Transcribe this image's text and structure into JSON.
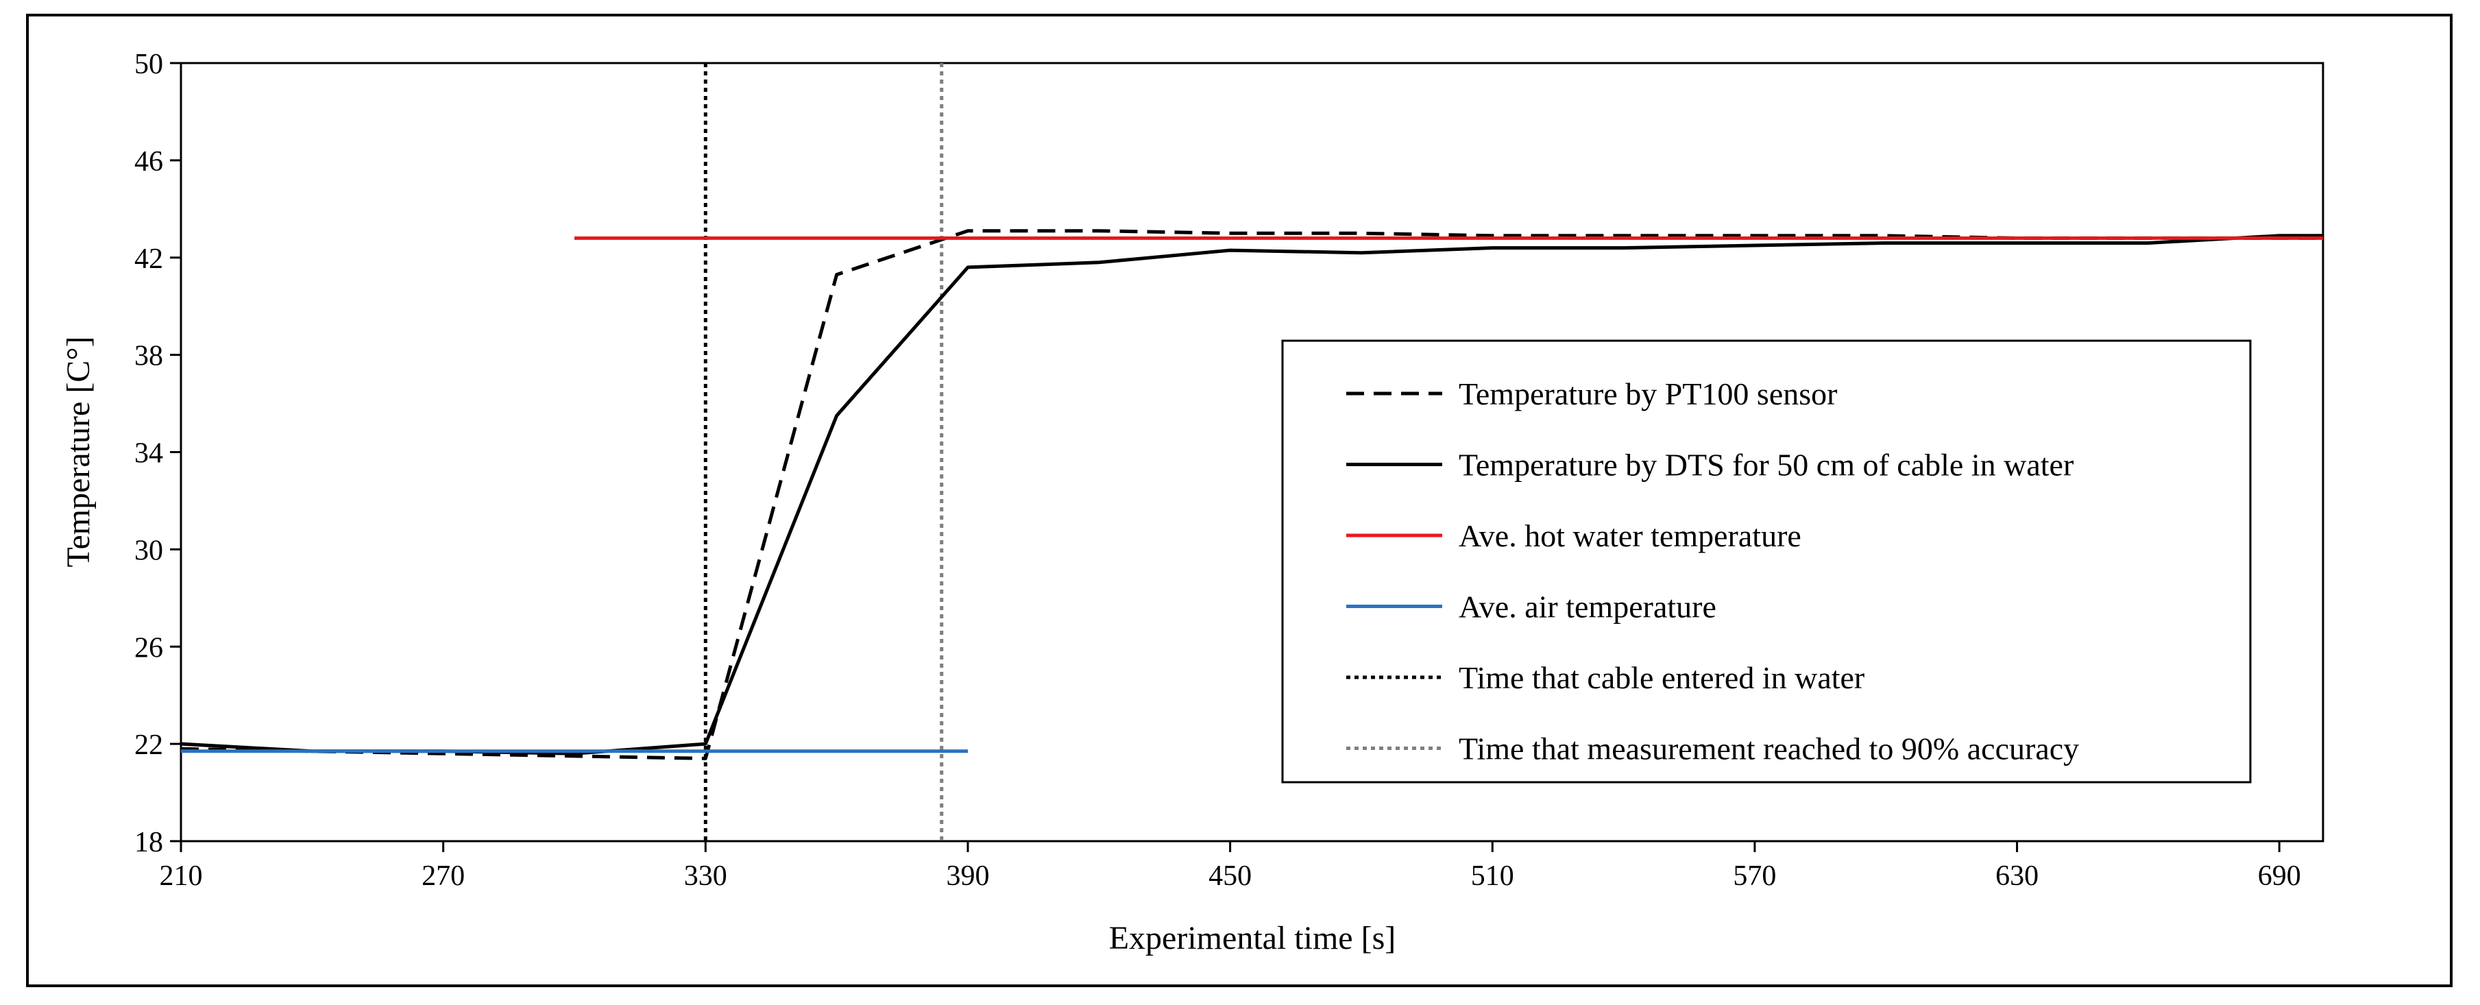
{
  "chart_data": {
    "type": "line",
    "title": "",
    "xlabel": "Experimental time [s]",
    "ylabel": "Temperature [C°]",
    "xlim": [
      210,
      700
    ],
    "ylim": [
      18,
      50
    ],
    "x_ticks": [
      210,
      270,
      330,
      390,
      450,
      510,
      570,
      630,
      690
    ],
    "y_ticks": [
      18,
      22,
      26,
      30,
      34,
      38,
      42,
      46,
      50
    ],
    "grid": false,
    "legend_position": "center-right",
    "series": [
      {
        "name": "Temperature by PT100 sensor",
        "style": "dashed",
        "color": "#000000",
        "points": [
          [
            210,
            21.8
          ],
          [
            240,
            21.7
          ],
          [
            270,
            21.6
          ],
          [
            300,
            21.5
          ],
          [
            330,
            21.4
          ],
          [
            360,
            41.3
          ],
          [
            390,
            43.1
          ],
          [
            420,
            43.1
          ],
          [
            450,
            43.0
          ],
          [
            480,
            43.0
          ],
          [
            510,
            42.9
          ],
          [
            540,
            42.9
          ],
          [
            570,
            42.9
          ],
          [
            600,
            42.9
          ],
          [
            630,
            42.8
          ],
          [
            660,
            42.8
          ],
          [
            690,
            42.8
          ],
          [
            700,
            42.8
          ]
        ]
      },
      {
        "name": "Temperature by DTS for 50 cm of cable in water",
        "style": "solid",
        "color": "#000000",
        "points": [
          [
            210,
            22.0
          ],
          [
            240,
            21.7
          ],
          [
            270,
            21.7
          ],
          [
            300,
            21.6
          ],
          [
            330,
            22.0
          ],
          [
            360,
            35.5
          ],
          [
            390,
            41.6
          ],
          [
            420,
            41.8
          ],
          [
            450,
            42.3
          ],
          [
            480,
            42.2
          ],
          [
            510,
            42.4
          ],
          [
            540,
            42.4
          ],
          [
            570,
            42.5
          ],
          [
            600,
            42.6
          ],
          [
            630,
            42.6
          ],
          [
            660,
            42.6
          ],
          [
            690,
            42.9
          ],
          [
            700,
            42.9
          ]
        ]
      },
      {
        "name": "Ave. hot water temperature",
        "style": "solid",
        "color": "#e8181e",
        "points": [
          [
            300,
            42.8
          ],
          [
            700,
            42.8
          ]
        ]
      },
      {
        "name": "Ave. air temperature",
        "style": "solid",
        "color": "#2a72c3",
        "points": [
          [
            210,
            21.7
          ],
          [
            390,
            21.7
          ]
        ]
      }
    ],
    "vertical_lines": [
      {
        "name": "Time that cable entered in water",
        "x": 330,
        "style": "dotted",
        "color": "#000000"
      },
      {
        "name": "Time that measurement reached to 90% accuracy",
        "x": 384,
        "style": "dotted",
        "color": "#7f7f7f"
      }
    ]
  }
}
